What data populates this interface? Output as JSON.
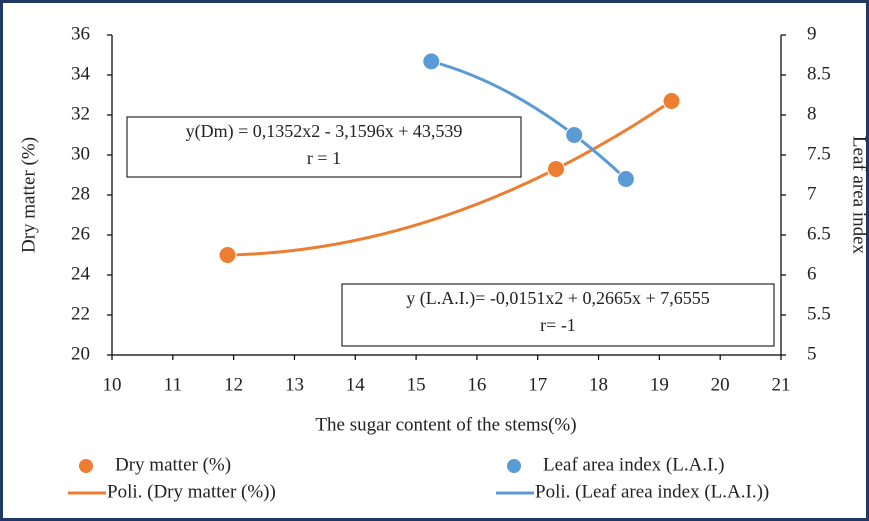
{
  "chart_data": {
    "type": "scatter",
    "x_label": "The sugar content of the stems(%)",
    "y_label": "Dry matter (%)",
    "y2_label": "Leaf area index",
    "xlim": [
      10,
      21
    ],
    "xticks": [
      10,
      11,
      12,
      13,
      14,
      15,
      16,
      17,
      18,
      19,
      20,
      21
    ],
    "ylim": [
      20,
      36
    ],
    "yticks": [
      20,
      22,
      24,
      26,
      28,
      30,
      32,
      34,
      36
    ],
    "y2lim": [
      5,
      9
    ],
    "y2ticks": [
      5,
      5.5,
      6,
      6.5,
      7,
      7.5,
      8,
      8.5,
      9
    ],
    "grid": false,
    "series": [
      {
        "name": "Dry matter (%)",
        "color": "#ed7d31",
        "x": [
          11.9,
          17.3,
          19.2
        ],
        "values": [
          25.0,
          29.3,
          32.7
        ],
        "trendline": {
          "name": "Poli. (Dry matter (%))"
        }
      },
      {
        "name": "Leaf area index (L.A.I.)",
        "color": "#5b9bd5",
        "axis": "y2",
        "x": [
          15.25,
          17.6,
          18.45
        ],
        "values": [
          8.67,
          7.75,
          7.2
        ],
        "trendline": {
          "name": "Poli. (Leaf area index (L.A.I.))"
        }
      }
    ],
    "annotations": [
      {
        "lines": [
          "y(Dm) = 0,1352x2 - 3,1596x + 43,539",
          "r = 1"
        ]
      },
      {
        "lines": [
          "y (L.A.I.)= -0,0151x2 + 0,2665x + 7,6555",
          "r= -1"
        ]
      }
    ]
  }
}
